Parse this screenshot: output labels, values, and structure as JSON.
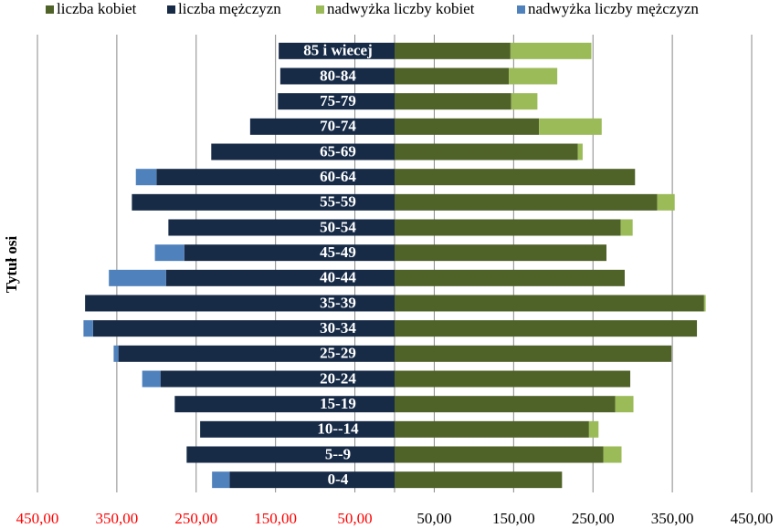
{
  "chart_data": {
    "type": "pyramid",
    "y_axis_label": "Tytuł osi",
    "categories": [
      "0-4",
      "5--9",
      "10--14",
      "15-19",
      "20-24",
      "25-29",
      "30-34",
      "35-39",
      "40-44",
      "45-49",
      "50-54",
      "55-59",
      "60-64",
      "65-69",
      "70-74",
      "75-79",
      "80-84",
      "85 i  wiecej"
    ],
    "series": [
      {
        "name": "liczba kobiet",
        "color": "#4f6228",
        "values": [
          211,
          263,
          245,
          278,
          297,
          349,
          381,
          390,
          290,
          267,
          285,
          331,
          303,
          231,
          182,
          147,
          144,
          146
        ]
      },
      {
        "name": "liczba mężczyzn",
        "color": "#172b47",
        "values": [
          -208,
          -262,
          -245,
          -277,
          -295,
          -348,
          -380,
          -390,
          -288,
          -265,
          -285,
          -331,
          -300,
          -231,
          -182,
          -147,
          -144,
          -146
        ]
      },
      {
        "name": "nadwyżka liczby kobiet",
        "color": "#9bbb59",
        "stack_on": 0,
        "values": [
          0,
          23,
          12,
          23,
          0,
          0,
          0,
          2,
          0,
          0,
          15,
          22,
          0,
          6,
          79,
          33,
          61,
          102
        ]
      },
      {
        "name": "nadwyżka liczby mężczyzn",
        "color": "#4f81bd",
        "stack_on": 1,
        "values": [
          -22,
          0,
          0,
          0,
          -23,
          -6,
          -12,
          0,
          -72,
          -37,
          0,
          0,
          -26,
          0,
          0,
          0,
          0,
          0
        ]
      }
    ],
    "xlim": [
      -450,
      450
    ],
    "xticks": [
      {
        "value": -450,
        "label": "450,00"
      },
      {
        "value": -350,
        "label": "350,00"
      },
      {
        "value": -250,
        "label": "250,00"
      },
      {
        "value": -150,
        "label": "150,00"
      },
      {
        "value": -50,
        "label": "50,00"
      },
      {
        "value": 50,
        "label": "50,00"
      },
      {
        "value": 150,
        "label": "150,00"
      },
      {
        "value": 250,
        "label": "250,00"
      },
      {
        "value": 350,
        "label": "350,00"
      },
      {
        "value": 450,
        "label": "450,00"
      }
    ],
    "negative_tick_color": "#ff0000",
    "grid": true,
    "legend": "top"
  }
}
